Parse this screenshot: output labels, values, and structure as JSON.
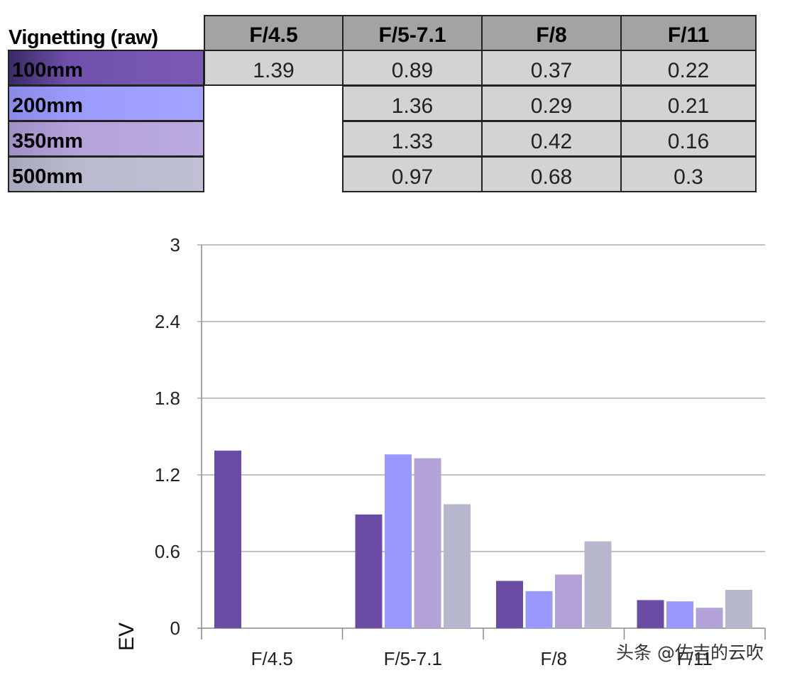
{
  "table": {
    "title": "Vignetting (raw)",
    "headers": [
      "F/4.5",
      "F/5-7.1",
      "F/8",
      "F/11"
    ],
    "rows": [
      {
        "label": "100mm",
        "values": [
          "1.39",
          "0.89",
          "0.37",
          "0.22"
        ]
      },
      {
        "label": "200mm",
        "values": [
          "",
          "1.36",
          "0.29",
          "0.21"
        ]
      },
      {
        "label": "350mm",
        "values": [
          "",
          "1.33",
          "0.42",
          "0.16"
        ]
      },
      {
        "label": "500mm",
        "values": [
          "",
          "0.97",
          "0.68",
          "0.3"
        ]
      }
    ]
  },
  "chart_data": {
    "type": "bar",
    "title": "",
    "xlabel": "",
    "ylabel": "EV",
    "ylim": [
      0,
      3
    ],
    "yticks": [
      "0",
      "0.6",
      "1.2",
      "1.8",
      "2.4",
      "3"
    ],
    "ytick_values": [
      0,
      0.6,
      1.2,
      1.8,
      2.4,
      3
    ],
    "grid": true,
    "categories": [
      "F/4.5",
      "F/5-7.1",
      "F/8",
      "F/11"
    ],
    "series": [
      {
        "name": "100mm",
        "color": "#6a4ca4",
        "values": [
          1.39,
          0.89,
          0.37,
          0.22
        ]
      },
      {
        "name": "200mm",
        "color": "#9898ff",
        "values": [
          null,
          1.36,
          0.29,
          0.21
        ]
      },
      {
        "name": "350mm",
        "color": "#b3a2d8",
        "values": [
          null,
          1.33,
          0.42,
          0.16
        ]
      },
      {
        "name": "500mm",
        "color": "#b6b6cc",
        "values": [
          null,
          0.97,
          0.68,
          0.3
        ]
      }
    ]
  },
  "watermark": "头条 @佐吉的云吹"
}
